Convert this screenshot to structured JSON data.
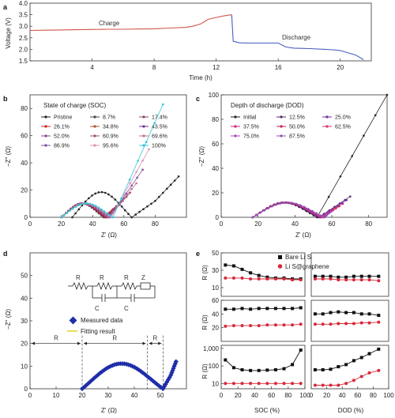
{
  "panels": {
    "a": "a",
    "b": "b",
    "c": "c",
    "d": "d",
    "e": "e"
  },
  "chart_data": [
    {
      "type": "line",
      "xlabel": "Time (h)",
      "ylabel": "Voltage (V)",
      "xlim": [
        0,
        22
      ],
      "ylim": [
        1.5,
        4.0
      ],
      "xticks": [
        4,
        8,
        12,
        16,
        20
      ],
      "yticks": [
        "1.5",
        "2.0",
        "2.5",
        "3.0",
        "3.5",
        "4.0"
      ],
      "annotations": [
        "Charge",
        "Discharge"
      ],
      "series": [
        {
          "color": "#d0564a",
          "x": [
            0,
            1,
            2,
            3,
            4,
            5,
            6,
            7,
            8,
            9,
            10,
            10.5,
            11,
            11.5,
            12,
            12.5,
            13
          ],
          "y": [
            2.82,
            2.83,
            2.84,
            2.85,
            2.86,
            2.87,
            2.87,
            2.88,
            2.89,
            2.92,
            2.95,
            3.0,
            3.1,
            3.3,
            3.38,
            3.45,
            3.5
          ]
        },
        {
          "color": "#4a5cc0",
          "x": [
            13,
            13.1,
            13.5,
            14,
            15,
            16,
            16.5,
            17,
            18,
            19,
            19.5,
            20,
            21,
            21.5
          ],
          "y": [
            3.5,
            2.35,
            2.28,
            2.27,
            2.27,
            2.27,
            2.1,
            2.05,
            2.03,
            2.0,
            1.98,
            1.95,
            1.75,
            1.55
          ]
        }
      ]
    },
    {
      "type": "scatter",
      "xlabel": "Z' (Ω)",
      "ylabel": "−Z'' (Ω)",
      "xlim": [
        0,
        100
      ],
      "ylim": [
        0,
        90
      ],
      "xticks": [
        0,
        20,
        40,
        60,
        80
      ],
      "yticks": [
        0,
        20,
        40,
        60,
        80
      ],
      "legend_title": "State of charge (SOC)",
      "series": [
        {
          "name": "Pristine",
          "color": "#222222",
          "arc": [
            27,
            65,
            20
          ],
          "tail": [
            [
              65,
              0
            ],
            [
              80,
              12
            ],
            [
              95,
              30
            ]
          ]
        },
        {
          "name": "8.7%",
          "color": "#444444",
          "arc": [
            20,
            47,
            11
          ],
          "tail": [
            [
              47,
              0
            ],
            [
              50,
              3
            ]
          ]
        },
        {
          "name": "17.4%",
          "color": "#8a4a6a",
          "arc": [
            20,
            48,
            11
          ],
          "tail": [
            [
              48,
              0
            ],
            [
              52,
              4
            ]
          ]
        },
        {
          "name": "26.1%",
          "color": "#d02020",
          "arc": [
            20,
            48,
            11
          ],
          "tail": [
            [
              48,
              0
            ],
            [
              53,
              6
            ]
          ]
        },
        {
          "name": "34.8%",
          "color": "#b05030",
          "arc": [
            20,
            49,
            11
          ],
          "tail": [
            [
              49,
              0
            ],
            [
              55,
              8
            ]
          ]
        },
        {
          "name": "43.5%",
          "color": "#703090",
          "arc": [
            20,
            49,
            11
          ],
          "tail": [
            [
              49,
              0
            ],
            [
              57,
              10
            ]
          ]
        },
        {
          "name": "52.0%",
          "color": "#9040a0",
          "arc": [
            20,
            50,
            11
          ],
          "tail": [
            [
              50,
              0
            ],
            [
              60,
              14
            ]
          ]
        },
        {
          "name": "60.9%",
          "color": "#a05070",
          "arc": [
            20,
            50,
            11
          ],
          "tail": [
            [
              50,
              0
            ],
            [
              64,
              18
            ]
          ]
        },
        {
          "name": "69.6%",
          "color": "#c07090",
          "arc": [
            20,
            50,
            11
          ],
          "tail": [
            [
              50,
              0
            ],
            [
              68,
              25
            ]
          ]
        },
        {
          "name": "86.9%",
          "color": "#8050a0",
          "arc": [
            20,
            51,
            11
          ],
          "tail": [
            [
              51,
              0
            ],
            [
              72,
              35
            ]
          ]
        },
        {
          "name": "95.6%",
          "color": "#e090b0",
          "arc": [
            20,
            52,
            11
          ],
          "tail": [
            [
              52,
              0
            ],
            [
              76,
              50
            ]
          ]
        },
        {
          "name": "100%",
          "color": "#30c8d8",
          "arc": [
            20,
            53,
            11
          ],
          "tail": [
            [
              53,
              0
            ],
            [
              85,
              83
            ]
          ]
        }
      ]
    },
    {
      "type": "scatter",
      "xlabel": "Z' (Ω)",
      "ylabel": "−Z'' (Ω)",
      "xlim": [
        0,
        90
      ],
      "ylim": [
        0,
        100
      ],
      "xticks": [
        0,
        20,
        40,
        60,
        80
      ],
      "yticks": [
        0,
        20,
        40,
        60,
        80,
        100
      ],
      "legend_title": "Depth of discharge (DOD)",
      "series": [
        {
          "name": "Initial",
          "color": "#222222",
          "arc": [
            17,
            52,
            13
          ],
          "tail": [
            [
              52,
              0
            ],
            [
              90,
              100
            ]
          ]
        },
        {
          "name": "12.5%",
          "color": "#5a2a6a",
          "arc": [
            17,
            53,
            13
          ],
          "tail": [
            [
              53,
              0
            ],
            [
              70,
              17
            ]
          ]
        },
        {
          "name": "25.0%",
          "color": "#7030a0",
          "arc": [
            17,
            53,
            13
          ],
          "tail": [
            [
              53,
              0
            ],
            [
              68,
              14
            ]
          ]
        },
        {
          "name": "37.5%",
          "color": "#d02080",
          "arc": [
            17,
            54,
            13
          ],
          "tail": [
            [
              54,
              0
            ],
            [
              66,
              11
            ]
          ]
        },
        {
          "name": "50.0%",
          "color": "#c02050",
          "arc": [
            17,
            54,
            13
          ],
          "tail": [
            [
              54,
              0
            ],
            [
              64,
              9
            ]
          ]
        },
        {
          "name": "62.5%",
          "color": "#e03070",
          "arc": [
            17,
            55,
            13
          ],
          "tail": [
            [
              55,
              0
            ],
            [
              62,
              7
            ]
          ]
        },
        {
          "name": "75.0%",
          "color": "#b040c0",
          "arc": [
            17,
            55,
            13
          ],
          "tail": [
            [
              55,
              0
            ],
            [
              60,
              5
            ]
          ]
        },
        {
          "name": "87.5%",
          "color": "#9050b0",
          "arc": [
            17,
            56,
            13
          ],
          "tail": [
            [
              56,
              0
            ],
            [
              58,
              3
            ]
          ]
        }
      ]
    },
    {
      "type": "scatter",
      "xlabel": "Z' (Ω)",
      "ylabel": "−Z'' (Ω)",
      "xlim": [
        0,
        60
      ],
      "ylim": [
        0,
        60
      ],
      "xticks": [
        0,
        10,
        20,
        30,
        40,
        50
      ],
      "yticks": [
        0,
        10,
        20,
        30,
        40,
        50
      ],
      "circuit": [
        "R",
        "R",
        "R",
        "Z",
        "C",
        "C"
      ],
      "dimension_labels": [
        "R",
        "R",
        "R"
      ],
      "series": [
        {
          "name": "Measured data",
          "color": "#1f2ea8",
          "arc": [
            20,
            51,
            12
          ],
          "tail": [
            [
              51,
              0
            ],
            [
              54,
              6
            ],
            [
              56,
              12
            ]
          ]
        },
        {
          "name": "Fitting result",
          "color": "#e0d31a"
        }
      ]
    },
    {
      "type": "line",
      "ylabels": [
        "R (Ω)",
        "R (Ω)",
        "R (Ω)"
      ],
      "xlabels": [
        "SOC (%)",
        "DOD (%)"
      ],
      "series_names": [
        "Bare Li S",
        "Li S@graphene"
      ],
      "xlim": [
        0,
        100
      ],
      "xticks": [
        0,
        20,
        40,
        60,
        80,
        100
      ],
      "dod_xticks": [
        0,
        20,
        40,
        60,
        80,
        100
      ],
      "rows": [
        {
          "ylim": [
            0,
            50
          ],
          "yticks": [
            "10",
            "30",
            "50"
          ],
          "log": false,
          "bare_soc": [
            36,
            35,
            31,
            27,
            24,
            22,
            21,
            21,
            20,
            20
          ],
          "graphene_soc": [
            21,
            21,
            21,
            20,
            20,
            20,
            20,
            20,
            19,
            19
          ],
          "bare_dod": [
            23,
            23,
            23,
            22,
            22,
            23,
            23,
            23,
            23
          ],
          "graphene_dod": [
            20,
            20,
            20,
            19,
            19,
            19,
            19,
            19,
            18
          ]
        },
        {
          "ylim": [
            0,
            60
          ],
          "yticks": [
            "20",
            "40",
            "60"
          ],
          "log": false,
          "bare_soc": [
            47,
            47,
            48,
            47,
            48,
            48,
            48,
            48,
            48,
            49
          ],
          "graphene_soc": [
            22,
            23,
            23,
            23,
            23,
            24,
            24,
            24,
            24,
            25
          ],
          "bare_dod": [
            40,
            40,
            42,
            43,
            42,
            42,
            40,
            40,
            38
          ],
          "graphene_dod": [
            25,
            25,
            25,
            26,
            26,
            26,
            27,
            27,
            28
          ]
        },
        {
          "ylim": [
            5,
            1500
          ],
          "yticks": [
            "10",
            "100",
            "1,000"
          ],
          "log": true,
          "bare_soc": [
            220,
            80,
            60,
            55,
            55,
            58,
            60,
            70,
            120,
            800
          ],
          "graphene_soc": [
            10,
            10,
            10,
            10,
            10,
            10,
            10,
            10,
            10,
            10
          ],
          "bare_dod": [
            60,
            60,
            65,
            90,
            120,
            200,
            300,
            500,
            900
          ],
          "graphene_dod": [
            8,
            8,
            8,
            8,
            10,
            15,
            25,
            40,
            55
          ]
        }
      ],
      "soc_x": [
        5,
        15,
        25,
        35,
        45,
        55,
        65,
        75,
        85,
        95
      ],
      "dod_x": [
        5,
        15,
        25,
        35,
        45,
        55,
        65,
        75,
        87
      ]
    }
  ]
}
